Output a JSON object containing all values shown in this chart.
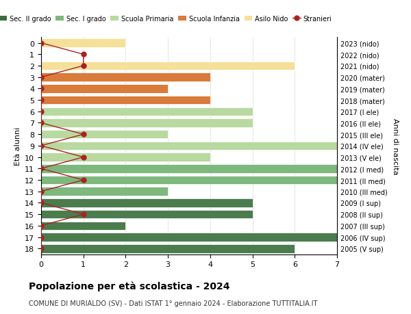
{
  "ages": [
    18,
    17,
    16,
    15,
    14,
    13,
    12,
    11,
    10,
    9,
    8,
    7,
    6,
    5,
    4,
    3,
    2,
    1,
    0
  ],
  "anni_nascita": [
    "2005 (V sup)",
    "2006 (IV sup)",
    "2007 (III sup)",
    "2008 (II sup)",
    "2009 (I sup)",
    "2010 (III med)",
    "2011 (II med)",
    "2012 (I med)",
    "2013 (V ele)",
    "2014 (IV ele)",
    "2015 (III ele)",
    "2016 (II ele)",
    "2017 (I ele)",
    "2018 (mater)",
    "2019 (mater)",
    "2020 (mater)",
    "2021 (nido)",
    "2022 (nido)",
    "2023 (nido)"
  ],
  "bar_values": [
    6,
    7,
    2,
    5,
    5,
    3,
    7,
    7,
    4,
    7,
    3,
    5,
    5,
    4,
    3,
    4,
    6,
    0,
    2
  ],
  "bar_colors": [
    "#4a7c4e",
    "#4a7c4e",
    "#4a7c4e",
    "#4a7c4e",
    "#4a7c4e",
    "#7db87d",
    "#7db87d",
    "#7db87d",
    "#b8d9a0",
    "#b8d9a0",
    "#b8d9a0",
    "#b8d9a0",
    "#b8d9a0",
    "#d97b3a",
    "#d97b3a",
    "#d97b3a",
    "#f5e09a",
    "#f5e09a",
    "#f5e09a"
  ],
  "stranieri_x": [
    0,
    0,
    0,
    1,
    0,
    0,
    1,
    0,
    1,
    0,
    1,
    0,
    0,
    0,
    0,
    0,
    1,
    1,
    0
  ],
  "color_sec2": "#3d6b42",
  "color_sec1": "#7db87d",
  "color_primaria": "#b8d9a0",
  "color_infanzia": "#d97b3a",
  "color_nido": "#f5e09a",
  "color_stranieri": "#aa2222",
  "title": "Popolazione per età scolastica - 2024",
  "subtitle": "COMUNE DI MURIALDO (SV) - Dati ISTAT 1° gennaio 2024 - Elaborazione TUTTITALIA.IT",
  "ylabel_left": "Età alunni",
  "ylabel_right": "Anni di nascita",
  "xlim": [
    0,
    7
  ],
  "legend_labels": [
    "Sec. II grado",
    "Sec. I grado",
    "Scuola Primaria",
    "Scuola Infanzia",
    "Asilo Nido",
    "Stranieri"
  ]
}
